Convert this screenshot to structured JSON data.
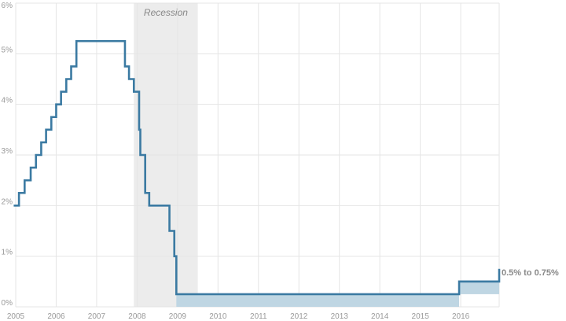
{
  "chart_data": {
    "type": "line",
    "step": true,
    "title": "",
    "xlabel": "",
    "ylabel": "",
    "xlim": [
      2005.0,
      2016.95
    ],
    "ylim": [
      0,
      6
    ],
    "x_ticks": [
      2005,
      2006,
      2007,
      2008,
      2009,
      2010,
      2011,
      2012,
      2013,
      2014,
      2015,
      2016
    ],
    "x_tick_labels": [
      "2005",
      "2006",
      "2007",
      "2008",
      "2009",
      "2010",
      "2011",
      "2012",
      "2013",
      "2014",
      "2015",
      "2016"
    ],
    "y_ticks": [
      0,
      1,
      2,
      3,
      4,
      5,
      6
    ],
    "y_tick_labels": [
      "0%",
      "1%",
      "2%",
      "3%",
      "4%",
      "5%",
      "6%"
    ],
    "grid": true,
    "recession": {
      "label": "Recession",
      "start": 2007.92,
      "end": 2009.5
    },
    "colors": {
      "line": "#3b7aa2",
      "band": "#bfd6e3",
      "recession": "#ececec",
      "grid": "#e5e5e5"
    },
    "series": [
      {
        "x": [
          2004.95,
          2005.08,
          2005.22,
          2005.37,
          2005.5,
          2005.63,
          2005.75,
          2005.88,
          2006.0,
          2006.12,
          2006.25,
          2006.37,
          2006.5,
          2007.7,
          2007.8,
          2007.92,
          2008.05,
          2008.08,
          2008.2,
          2008.3,
          2008.8,
          2008.92,
          2008.97,
          2015.96,
          2016.95
        ],
        "y": [
          2.0,
          2.25,
          2.5,
          2.75,
          3.0,
          3.25,
          3.5,
          3.75,
          4.0,
          4.25,
          4.5,
          4.75,
          5.25,
          4.75,
          4.5,
          4.25,
          3.5,
          3.0,
          2.25,
          2.0,
          1.5,
          1.0,
          0.25,
          0.5,
          0.75
        ]
      }
    ],
    "target_range": [
      {
        "x_start": 2008.97,
        "x_end": 2015.96,
        "low": 0.0,
        "high": 0.25
      },
      {
        "x_start": 2015.96,
        "x_end": 2016.95,
        "low": 0.25,
        "high": 0.5
      }
    ],
    "annotation": {
      "text": "0.5% to 0.75%",
      "x": 2016.95,
      "y": 0.75
    }
  }
}
